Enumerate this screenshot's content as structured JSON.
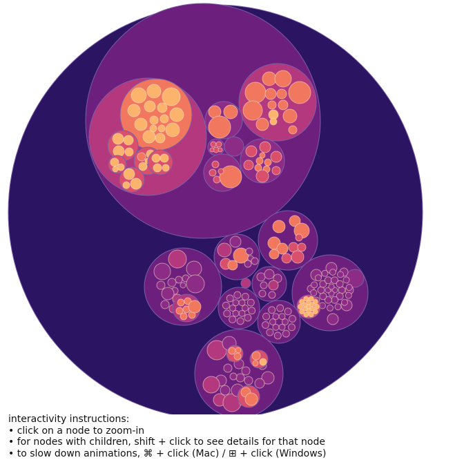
{
  "instructions": {
    "title": "interactivity instructions:",
    "items": [
      "• click on a node to zoom-in",
      "• for nodes with children, shift + click to see details for that node",
      "• to slow down animations, ⌘ + click (Mac) / ⊞ + click (Windows)"
    ]
  },
  "palette": {
    "depth0": "#2b1462",
    "depth1": "#6d1f7e",
    "depth2": "#8c2c86",
    "depth3": "#b4387d",
    "depth4": "#d94f6c",
    "depth5": "#f2775f",
    "depth6": "#fcb46d"
  }
}
